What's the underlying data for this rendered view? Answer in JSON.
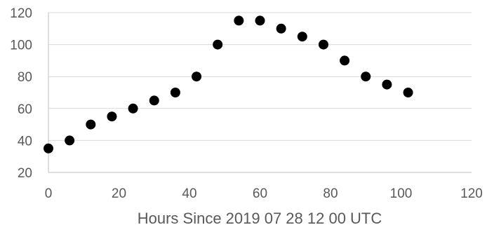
{
  "chart_data": {
    "type": "scatter",
    "title": "",
    "xlabel": "Hours Since 2019 07 28 12 00 UTC",
    "ylabel": "",
    "xlim": [
      0,
      120
    ],
    "ylim": [
      20,
      120
    ],
    "x_ticks": [
      0,
      20,
      40,
      60,
      80,
      100,
      120
    ],
    "y_ticks": [
      20,
      40,
      60,
      80,
      100,
      120
    ],
    "grid": "horizontal",
    "legend": "none",
    "colors": {
      "marker": "#000000",
      "grid": "#d9d9d9",
      "axis": "#bfbfbf",
      "text": "#595959"
    },
    "series": [
      {
        "x": [
          0,
          6,
          12,
          18,
          24,
          30,
          36,
          42,
          48,
          54,
          60,
          66,
          72,
          78,
          84,
          90,
          96,
          102
        ],
        "y": [
          35,
          40,
          50,
          55,
          60,
          65,
          70,
          80,
          100,
          115,
          115,
          110,
          105,
          100,
          90,
          80,
          75,
          70
        ]
      }
    ]
  }
}
